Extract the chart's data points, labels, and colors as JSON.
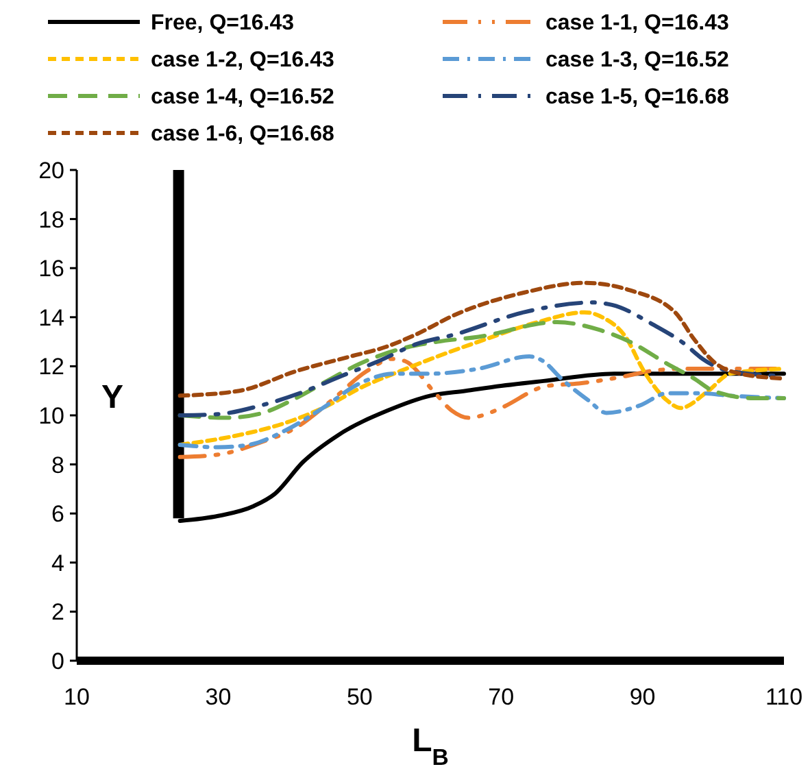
{
  "chart_data": {
    "type": "line",
    "xlabel": "L$_{B}$",
    "ylabel": "Y",
    "xlim": [
      10,
      110
    ],
    "xticks": [
      10,
      30,
      50,
      70,
      90,
      110
    ],
    "ylim": [
      0,
      20
    ],
    "yticks": [
      0,
      2,
      4,
      6,
      8,
      10,
      12,
      14,
      16,
      18,
      20
    ],
    "grid": false,
    "legend": "top",
    "series": [
      {
        "name": "Free, Q=16.43",
        "color": "#000000",
        "line_style": "solid",
        "x": [
          24.6,
          30,
          35,
          38,
          42,
          47,
          54,
          60,
          65,
          70,
          76,
          86,
          96,
          110
        ],
        "values": [
          5.7,
          5.9,
          6.3,
          6.8,
          8.1,
          9.2,
          10.2,
          10.8,
          11.0,
          11.2,
          11.4,
          11.7,
          11.7,
          11.7
        ]
      },
      {
        "color": "#000000",
        "line_style": "solid",
        "x": [
          24.4,
          24.4
        ],
        "values": [
          5.8,
          20
        ]
      },
      {
        "name": "case 1-1, Q=16.43",
        "color": "#ed7d31",
        "line_style": "longdashdotdot",
        "x": [
          24.6,
          30,
          36,
          41,
          46,
          51,
          54.6,
          56.5,
          60.4,
          63,
          65.4,
          67.4,
          70,
          76.5,
          81,
          87.6,
          91,
          96,
          102,
          110
        ],
        "values": [
          8.3,
          8.4,
          8.9,
          9.5,
          10.6,
          11.8,
          12.3,
          12.2,
          11.0,
          10.2,
          9.9,
          10.0,
          10.3,
          11.2,
          11.3,
          11.6,
          11.8,
          11.9,
          11.9,
          11.9
        ]
      },
      {
        "name": "case 1-2, Q=16.43",
        "color": "#ffc000",
        "line_style": "dashed",
        "x": [
          24.6,
          33,
          39.6,
          44.8,
          50.7,
          55.7,
          61,
          66.8,
          75.2,
          81.8,
          84.3,
          87.6,
          90.2,
          93.5,
          95.4,
          99.3,
          102.4,
          110
        ],
        "values": [
          8.8,
          9.2,
          9.7,
          10.3,
          11.2,
          11.8,
          12.4,
          13.0,
          13.8,
          14.2,
          14.0,
          13.2,
          11.8,
          10.6,
          10.3,
          11.0,
          11.7,
          11.9
        ]
      },
      {
        "name": "case 1-3, Q=16.52",
        "color": "#5b9bd5",
        "line_style": "dashdot",
        "x": [
          24.6,
          30,
          34.3,
          39.6,
          44.8,
          50,
          55,
          60,
          66.8,
          74,
          76,
          78.5,
          82.4,
          84.9,
          89.6,
          93.5,
          98,
          102.4,
          110
        ],
        "values": [
          8.8,
          8.7,
          8.8,
          9.4,
          10.3,
          11.3,
          11.7,
          11.7,
          11.9,
          12.4,
          12.2,
          11.5,
          10.6,
          10.1,
          10.4,
          10.9,
          10.9,
          10.8,
          10.7
        ]
      },
      {
        "name": "case 1-4, Q=16.52",
        "color": "#70ad47",
        "line_style": "longdash",
        "x": [
          24.6,
          31.2,
          36.3,
          41,
          46,
          50,
          55.7,
          61,
          66.8,
          77.9,
          83.7,
          88.2,
          93.5,
          97.3,
          100,
          105.7,
          110
        ],
        "values": [
          10.0,
          9.9,
          10.1,
          10.7,
          11.5,
          12.1,
          12.7,
          13.0,
          13.2,
          13.8,
          13.5,
          13.0,
          12.1,
          11.5,
          11.0,
          10.7,
          10.7
        ]
      },
      {
        "name": "case 1-5, Q=16.68",
        "color": "#264478",
        "line_style": "longdashdot",
        "x": [
          24.6,
          30,
          36,
          41.5,
          47.4,
          52.6,
          58,
          63.5,
          73.2,
          83,
          85.7,
          91.5,
          96,
          98.5,
          102.4,
          110
        ],
        "values": [
          10.0,
          10.05,
          10.4,
          10.9,
          11.6,
          12.2,
          12.9,
          13.3,
          14.2,
          14.6,
          14.5,
          13.7,
          12.9,
          12.3,
          11.8,
          11.6
        ]
      },
      {
        "name": "case 1-6, Q=16.68",
        "color": "#9e480e",
        "line_style": "dashed",
        "x": [
          24.6,
          33,
          41,
          48.7,
          53.8,
          58,
          63.5,
          73.2,
          81.8,
          88.2,
          94.6,
          97.3,
          100,
          103.8,
          110
        ],
        "values": [
          10.8,
          11.0,
          11.8,
          12.4,
          12.8,
          13.3,
          14.1,
          15.0,
          15.4,
          15.1,
          14.2,
          13.1,
          12.2,
          11.7,
          11.5
        ]
      }
    ]
  }
}
